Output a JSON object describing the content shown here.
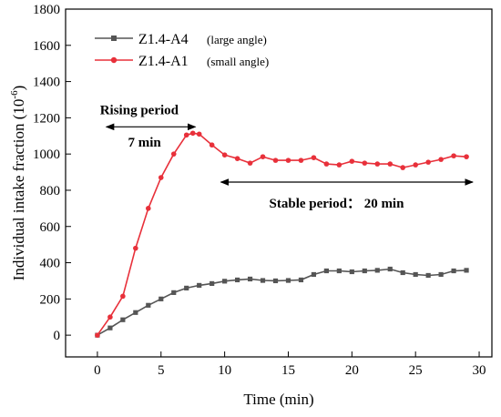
{
  "chart_data": {
    "type": "line",
    "xlabel": "Time (min)",
    "ylabel": "Individual intake fraction (10",
    "ylabel_sup": "-6",
    "ylabel_close": ")",
    "xlim": [
      -2.5,
      31
    ],
    "ylim": [
      -120,
      1800
    ],
    "xticks": [
      0,
      5,
      10,
      15,
      20,
      25,
      30
    ],
    "yticks": [
      0,
      200,
      400,
      600,
      800,
      1000,
      1200,
      1400,
      1600,
      1800
    ],
    "legend_position": "top-left",
    "series": [
      {
        "name": "Z1.4-A4",
        "name_note": "(large angle)",
        "color": "#555555",
        "marker": "square",
        "x": [
          0,
          1,
          2,
          3,
          4,
          5,
          6,
          7,
          8,
          9,
          10,
          11,
          12,
          13,
          14,
          15,
          16,
          17,
          18,
          19,
          20,
          21,
          22,
          23,
          24,
          25,
          26,
          27,
          28,
          29
        ],
        "y": [
          0,
          40,
          85,
          125,
          165,
          200,
          235,
          260,
          275,
          285,
          298,
          305,
          310,
          302,
          300,
          302,
          305,
          335,
          355,
          355,
          350,
          355,
          358,
          365,
          345,
          335,
          330,
          335,
          355,
          358
        ]
      },
      {
        "name": "Z1.4-A1",
        "name_note": "(small angle)",
        "color": "#e8303a",
        "marker": "circle",
        "x": [
          0,
          1,
          2,
          3,
          4,
          5,
          6,
          7,
          7.5,
          8,
          9,
          10,
          11,
          12,
          13,
          14,
          15,
          16,
          17,
          18,
          19,
          20,
          21,
          22,
          23,
          24,
          25,
          26,
          27,
          28,
          29
        ],
        "y": [
          0,
          100,
          215,
          480,
          700,
          870,
          1000,
          1105,
          1115,
          1110,
          1050,
          995,
          975,
          950,
          985,
          965,
          965,
          965,
          980,
          945,
          940,
          960,
          950,
          945,
          945,
          925,
          940,
          955,
          970,
          990,
          985
        ]
      }
    ],
    "annotations": [
      {
        "text": "Rising period",
        "x_from": 0.7,
        "x_to": 7.7,
        "y": 1150,
        "label_y": 1220,
        "label_x": 0.2
      },
      {
        "text": "7 min",
        "label_x": 2.4,
        "label_y": 1040
      },
      {
        "text": "Stable period： 20 min",
        "x_from": 9.7,
        "x_to": 29.5,
        "y": 845,
        "label_x": 13.5,
        "label_y": 705
      }
    ]
  }
}
